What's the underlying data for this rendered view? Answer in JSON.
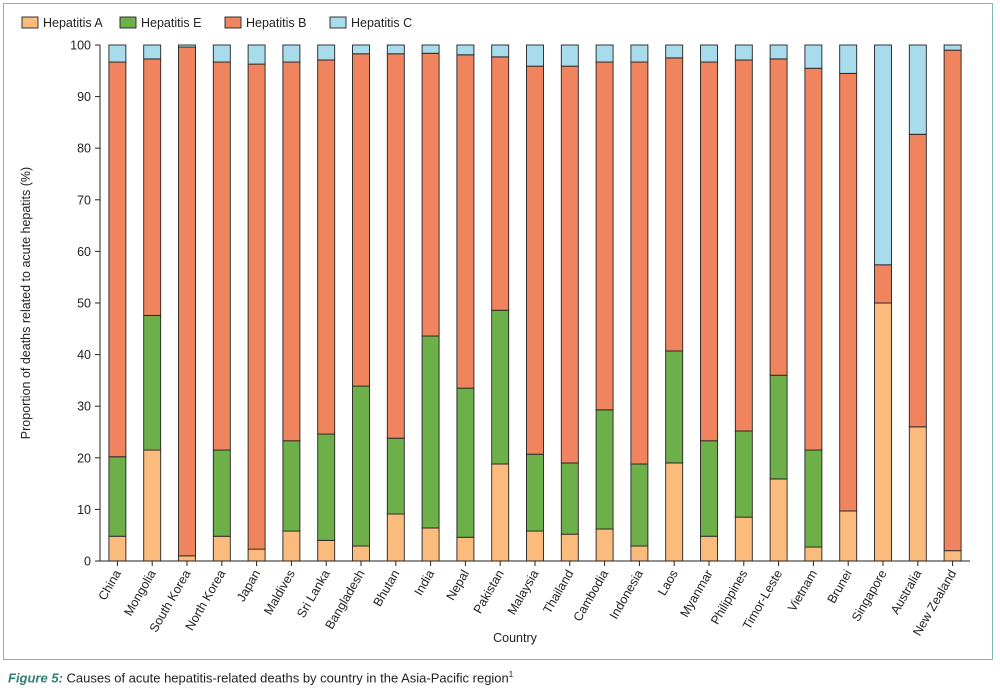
{
  "chart_data": {
    "type": "bar",
    "stacked": true,
    "title": "",
    "xlabel": "Country",
    "ylabel": "Proportion of deaths related to acute hepatits (%)",
    "ylim": [
      0,
      100
    ],
    "yticks": [
      0,
      10,
      20,
      30,
      40,
      50,
      60,
      70,
      80,
      90,
      100
    ],
    "legend_position": "top-left",
    "categories": [
      "China",
      "Mongolia",
      "South Korea",
      "North Korea",
      "Japan",
      "Maldives",
      "Sri Lanka",
      "Bangladesh",
      "Bhutan",
      "India",
      "Nepal",
      "Pakistan",
      "Malaysia",
      "Thailand",
      "Cambodia",
      "Indonesia",
      "Laos",
      "Myanmar",
      "Philippines",
      "Timor-Leste",
      "Vietnam",
      "Brunei",
      "Singapore",
      "Australia",
      "New Zealand"
    ],
    "series": [
      {
        "name": "Hepatitis A",
        "color": "#fbbb7c",
        "values": [
          4.8,
          21.5,
          1.0,
          4.8,
          2.3,
          5.8,
          4.0,
          2.9,
          9.1,
          6.4,
          4.6,
          18.8,
          5.8,
          5.2,
          6.2,
          2.9,
          19.0,
          4.8,
          8.5,
          15.9,
          2.7,
          9.7,
          50.0,
          26.0,
          2.0
        ]
      },
      {
        "name": "Hepatitis E",
        "color": "#6db04a",
        "values": [
          15.4,
          26.1,
          0.0,
          16.7,
          0.0,
          17.5,
          20.6,
          31.0,
          14.7,
          37.2,
          28.9,
          29.8,
          14.9,
          13.8,
          23.1,
          15.9,
          21.7,
          18.5,
          16.7,
          20.1,
          18.8,
          0.0,
          0.0,
          0.0,
          0.0
        ]
      },
      {
        "name": "Hepatitis B",
        "color": "#f0845f",
        "values": [
          76.5,
          49.7,
          98.6,
          75.2,
          94.0,
          73.4,
          72.5,
          64.4,
          74.5,
          54.8,
          64.6,
          49.1,
          75.2,
          76.9,
          67.4,
          77.9,
          56.8,
          73.4,
          71.9,
          61.3,
          74.0,
          84.8,
          7.4,
          56.7,
          97.0
        ]
      },
      {
        "name": "Hepatitis C",
        "color": "#a8dbec",
        "values": [
          3.3,
          2.7,
          0.4,
          3.3,
          3.7,
          3.3,
          2.9,
          1.7,
          1.7,
          1.6,
          1.9,
          2.3,
          4.1,
          4.1,
          3.3,
          3.3,
          2.5,
          3.3,
          2.9,
          2.7,
          4.5,
          5.5,
          42.6,
          17.3,
          1.0
        ]
      }
    ]
  },
  "caption": {
    "figure_label": "Figure 5:",
    "text": " Causes of acute hepatitis-related deaths by country in the Asia-Pacific region",
    "superscript": "1"
  }
}
